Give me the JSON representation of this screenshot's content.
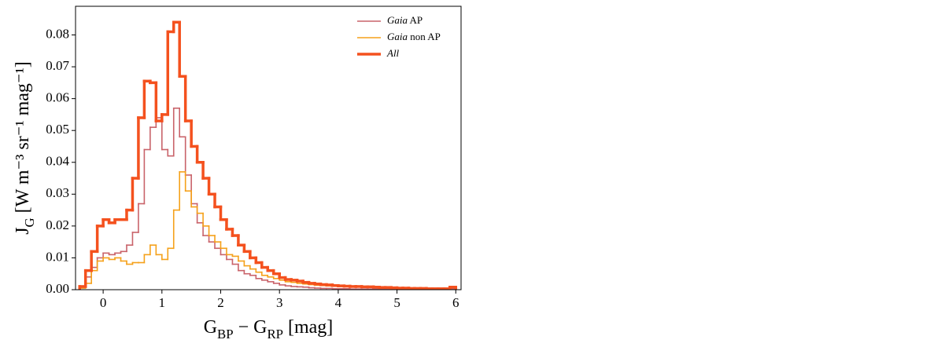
{
  "chart_data": {
    "type": "histogram",
    "xlabel": "G_BP − G_RP [mag]",
    "ylabel": "J_G [W m⁻³ sr⁻¹ mag⁻¹]",
    "xlim": [
      -0.47,
      6.09
    ],
    "ylim": [
      0,
      0.089
    ],
    "xticks": [
      0,
      1,
      2,
      3,
      4,
      5,
      6
    ],
    "yticks": [
      {
        "value": 0,
        "label": "0.00"
      },
      {
        "value": 0.01,
        "label": "0.01"
      },
      {
        "value": 0.02,
        "label": "0.02"
      },
      {
        "value": 0.03,
        "label": "0.03"
      },
      {
        "value": 0.04,
        "label": "0.04"
      },
      {
        "value": 0.05,
        "label": "0.05"
      },
      {
        "value": 0.06,
        "label": "0.06"
      },
      {
        "value": 0.07,
        "label": "0.07"
      },
      {
        "value": 0.08,
        "label": "0.08"
      }
    ],
    "legend": "upper right",
    "bins": [
      -0.4,
      -0.3,
      -0.2,
      -0.1,
      0,
      0.1,
      0.2,
      0.3,
      0.4,
      0.5,
      0.6,
      0.7,
      0.8,
      0.9,
      1,
      1.1,
      1.2,
      1.3,
      1.4,
      1.5,
      1.6,
      1.7,
      1.8,
      1.9,
      2,
      2.1,
      2.2,
      2.3,
      2.4,
      2.5,
      2.6,
      2.7,
      2.8,
      2.9,
      3,
      3.1,
      3.2,
      3.3,
      3.4,
      3.5,
      3.6,
      3.7,
      3.8,
      3.9,
      4,
      4.1,
      4.2,
      4.3,
      4.4,
      4.5,
      4.6,
      4.7,
      4.8,
      4.9,
      5,
      5.1,
      5.2,
      5.3,
      5.4,
      5.5,
      5.6,
      5.7,
      5.8,
      5.9,
      6
    ],
    "series": [
      {
        "name": "Gaia AP",
        "color": "#c9636a",
        "width": 1.6,
        "values": [
          0.0005,
          0.004,
          0.007,
          0.01,
          0.0115,
          0.011,
          0.0115,
          0.012,
          0.014,
          0.018,
          0.027,
          0.044,
          0.051,
          0.054,
          0.044,
          0.042,
          0.057,
          0.048,
          0.036,
          0.027,
          0.021,
          0.017,
          0.015,
          0.013,
          0.011,
          0.0095,
          0.008,
          0.006,
          0.005,
          0.0045,
          0.0035,
          0.003,
          0.0025,
          0.002,
          0.0015,
          0.0012,
          0.001,
          0.0009,
          0.0008,
          0.0006,
          0.0005,
          0.0004,
          0.0004,
          0.0003,
          0.0003,
          0.0003,
          0.0002,
          0.0002,
          0.0002,
          0.0002,
          0.0002,
          0.0002,
          0.0002,
          0.0001,
          0.0001,
          0.0001,
          0.0001,
          0.0001,
          0.0001,
          0.0001,
          0.0001,
          0.0001,
          0.0001,
          0.0002
        ]
      },
      {
        "name": "Gaia non AP",
        "color": "#f5a11a",
        "width": 1.6,
        "values": [
          0.0005,
          0.002,
          0.006,
          0.009,
          0.01,
          0.0095,
          0.01,
          0.009,
          0.008,
          0.0085,
          0.0085,
          0.011,
          0.014,
          0.011,
          0.0095,
          0.013,
          0.025,
          0.037,
          0.031,
          0.026,
          0.024,
          0.02,
          0.017,
          0.015,
          0.013,
          0.011,
          0.0105,
          0.009,
          0.0075,
          0.0065,
          0.0055,
          0.0045,
          0.004,
          0.0035,
          0.003,
          0.0025,
          0.0023,
          0.002,
          0.0018,
          0.0016,
          0.0014,
          0.0013,
          0.0012,
          0.0011,
          0.001,
          0.001,
          0.0009,
          0.0009,
          0.0008,
          0.0008,
          0.0007,
          0.0006,
          0.0006,
          0.0005,
          0.0005,
          0.0004,
          0.0004,
          0.0004,
          0.0003,
          0.0003,
          0.0003,
          0.0003,
          0.0003,
          0.0007
        ]
      },
      {
        "name": "All",
        "color": "#f4511e",
        "width": 3.5,
        "values": [
          0.001,
          0.006,
          0.012,
          0.02,
          0.022,
          0.021,
          0.022,
          0.022,
          0.025,
          0.035,
          0.054,
          0.0655,
          0.065,
          0.053,
          0.055,
          0.081,
          0.084,
          0.067,
          0.053,
          0.045,
          0.04,
          0.035,
          0.03,
          0.026,
          0.022,
          0.019,
          0.017,
          0.014,
          0.012,
          0.01,
          0.0085,
          0.007,
          0.006,
          0.005,
          0.0038,
          0.0032,
          0.003,
          0.0027,
          0.0023,
          0.002,
          0.0018,
          0.0016,
          0.0015,
          0.0013,
          0.0012,
          0.0011,
          0.001,
          0.001,
          0.0009,
          0.0009,
          0.0008,
          0.0007,
          0.0007,
          0.0006,
          0.0005,
          0.0005,
          0.0004,
          0.0004,
          0.0004,
          0.0003,
          0.0003,
          0.0003,
          0.0003,
          0.0008
        ]
      }
    ]
  }
}
